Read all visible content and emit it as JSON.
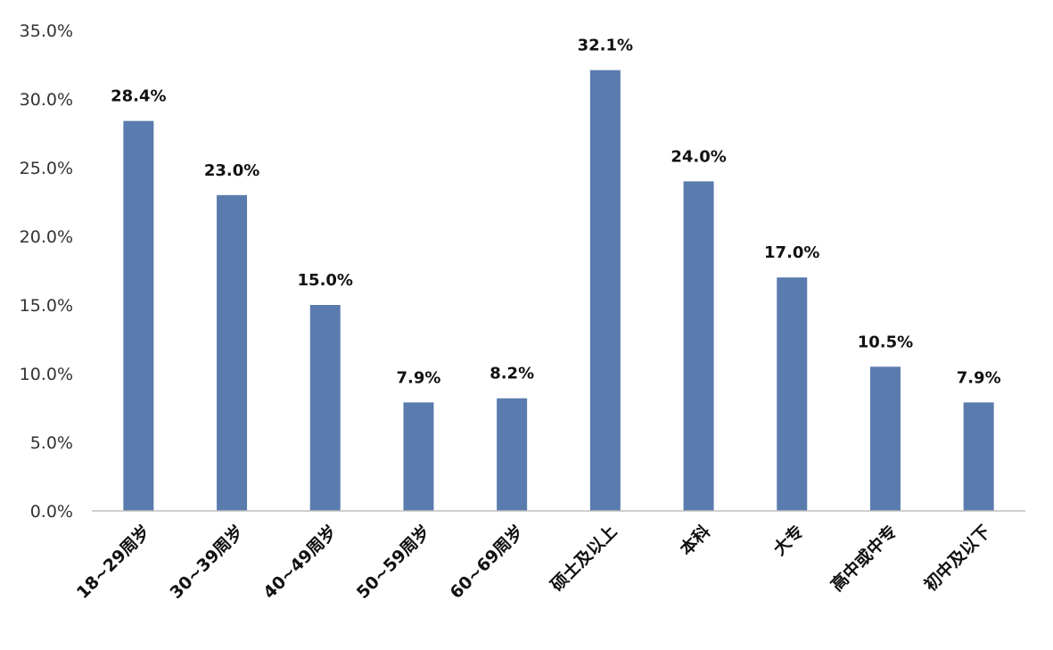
{
  "chart_data": {
    "type": "bar",
    "title": "",
    "xlabel": "",
    "ylabel": "",
    "categories": [
      "18~29周岁",
      "30~39周岁",
      "40~49周岁",
      "50~59周岁",
      "60~69周岁",
      "硕士及以上",
      "本科",
      "大专",
      "高中或中专",
      "初中及以下"
    ],
    "series": [
      {
        "values": [
          28.4,
          23.0,
          15.0,
          7.9,
          8.2,
          32.1,
          24.0,
          17.0,
          10.5,
          7.9
        ],
        "labels": [
          "28.4%",
          "23.0%",
          "15.0%",
          "7.9%",
          "8.2%",
          "32.1%",
          "24.0%",
          "17.0%",
          "10.5%",
          "7.9%"
        ]
      }
    ],
    "ylim": [
      0,
      35
    ],
    "yticks": [
      0,
      5,
      10,
      15,
      20,
      25,
      30,
      35
    ],
    "ytick_labels": [
      "0.0%",
      "5.0%",
      "10.0%",
      "15.0%",
      "20.0%",
      "25.0%",
      "30.0%",
      "35.0%"
    ],
    "grid": false,
    "legend": "none",
    "bar_color": "#5a7bad"
  }
}
